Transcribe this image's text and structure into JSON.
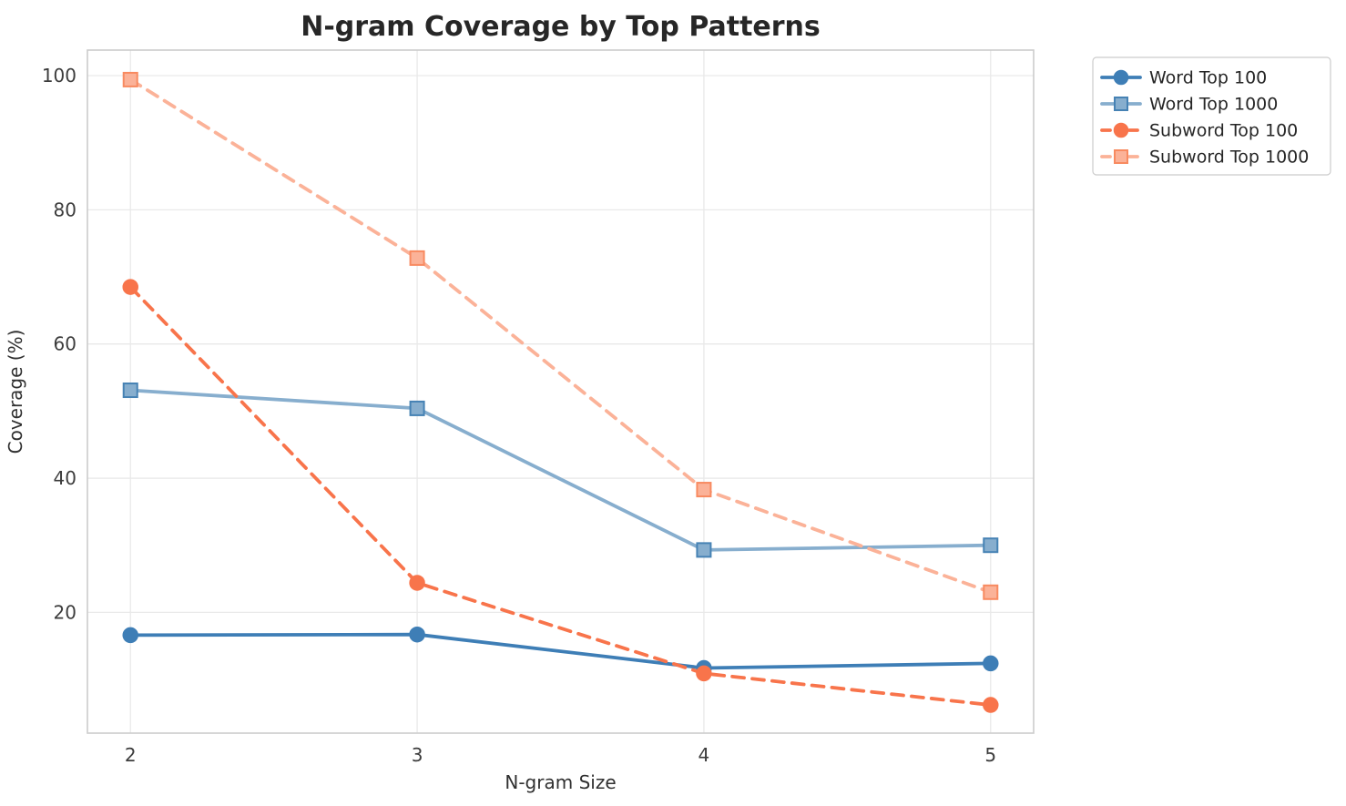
{
  "chart_data": {
    "type": "line",
    "title": "N-gram Coverage by Top Patterns",
    "xlabel": "N-gram Size",
    "ylabel": "Coverage (%)",
    "x": [
      2,
      3,
      4,
      5
    ],
    "xticks": [
      2,
      3,
      4,
      5
    ],
    "xticklabels": [
      "2",
      "3",
      "4",
      "5"
    ],
    "yticks": [
      20,
      40,
      60,
      80,
      100
    ],
    "yticklabels": [
      "20",
      "40",
      "60",
      "80",
      "100"
    ],
    "xlim": [
      1.85,
      5.15
    ],
    "ylim": [
      2,
      103.8
    ],
    "grid": true,
    "legend_position": "outside-upper-right",
    "series": [
      {
        "name": "Word Top 100",
        "values": [
          16.6,
          16.7,
          11.7,
          12.4
        ],
        "color": "#3e7eb6",
        "marker": "circle",
        "marker_edge": "#3e7eb6",
        "linestyle": "solid"
      },
      {
        "name": "Word Top 1000",
        "values": [
          53.1,
          50.4,
          29.3,
          30.0
        ],
        "color": "#87aece",
        "marker": "square",
        "marker_edge": "#4682b4",
        "linestyle": "solid"
      },
      {
        "name": "Subword Top 100",
        "values": [
          68.5,
          24.4,
          10.9,
          6.2
        ],
        "color": "#f8744b",
        "marker": "circle",
        "marker_edge": "#f8744b",
        "linestyle": "dashed"
      },
      {
        "name": "Subword Top 1000",
        "values": [
          99.4,
          72.8,
          38.3,
          23.0
        ],
        "color": "#fbb298",
        "marker": "square",
        "marker_edge": "#f88a60",
        "linestyle": "dashed"
      }
    ],
    "style": {
      "grid_color": "#e9e9e9",
      "spine_color": "#cccccc",
      "background": "#ffffff",
      "legend_border": "#cccccc"
    }
  }
}
